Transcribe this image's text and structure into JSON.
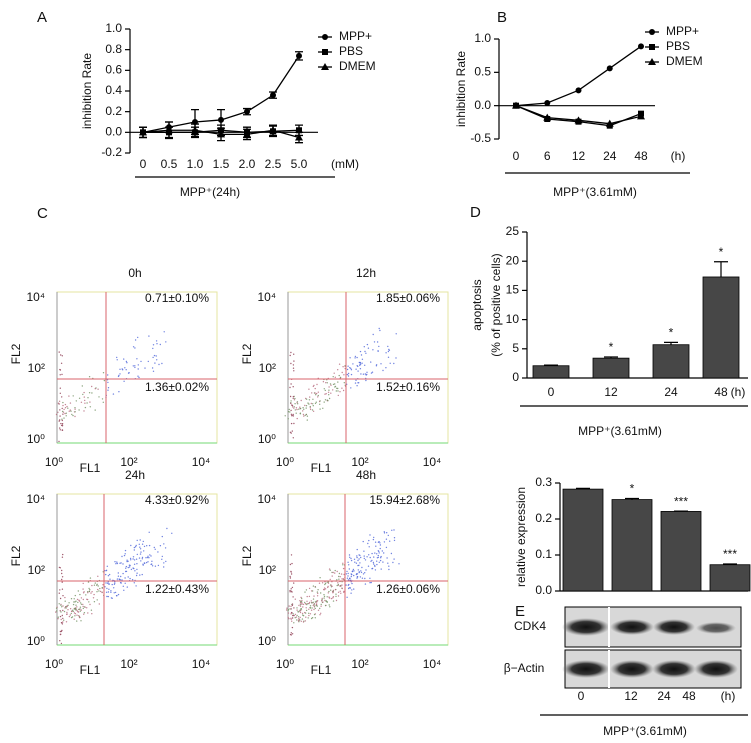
{
  "chart_data": [
    {
      "panel": "A",
      "type": "line",
      "y_label": "inhibition Rate",
      "x_label": "MPP⁺(24h)",
      "x_unit": "(mM)",
      "categories": [
        "0",
        "0.5",
        "1.0",
        "1.5",
        "2.0",
        "2.5",
        "5.0"
      ],
      "ylim": [
        -0.2,
        1.0
      ],
      "yticks": [
        -0.2,
        {
          "value": 0,
          "label": "0.0"
        },
        0.2,
        0.4,
        0.6,
        0.8,
        {
          "value": 1,
          "label": "1.0"
        }
      ],
      "series": [
        {
          "name": "MPP+",
          "color": "#000000",
          "marker": "circle",
          "values": [
            0,
            0.05,
            0.1,
            0.12,
            0.2,
            0.36,
            0.74
          ],
          "errors": [
            0.05,
            0.05,
            0.12,
            0.1,
            0.03,
            0.03,
            0.04
          ]
        },
        {
          "name": "PBS",
          "color": "#000000",
          "marker": "square",
          "values": [
            0,
            0,
            0,
            0.02,
            0,
            0.01,
            0.02
          ],
          "errors": [
            0.05,
            0.05,
            0.05,
            0.05,
            0.05,
            0.05,
            0.05
          ]
        },
        {
          "name": "DMEM",
          "color": "#000000",
          "marker": "triangle",
          "values": [
            0,
            0.02,
            0.02,
            -0.02,
            -0.02,
            0.02,
            -0.05
          ],
          "errors": [
            0.05,
            0.08,
            0.06,
            0.06,
            0.05,
            0.05,
            0.05
          ]
        }
      ]
    },
    {
      "panel": "B",
      "type": "line",
      "y_label": "inhibition Rate",
      "x_label": "MPP⁺(3.61mM)",
      "x_unit": "(h)",
      "categories": [
        "0",
        "6",
        "12",
        "24",
        "48"
      ],
      "ylim": [
        -0.5,
        1.0
      ],
      "yticks": [
        -0.5,
        {
          "value": 0,
          "label": "0.0"
        },
        0.5,
        {
          "value": 1,
          "label": "1.0"
        }
      ],
      "series": [
        {
          "name": "MPP+",
          "color": "#000000",
          "marker": "circle",
          "values": [
            0,
            0.04,
            0.23,
            0.56,
            0.89
          ]
        },
        {
          "name": "PBS",
          "color": "#000000",
          "marker": "square",
          "values": [
            0,
            -0.2,
            -0.24,
            -0.3,
            -0.12
          ]
        },
        {
          "name": "DMEM",
          "color": "#000000",
          "marker": "triangle",
          "values": [
            0,
            -0.18,
            -0.22,
            -0.27,
            -0.16
          ]
        }
      ]
    },
    {
      "panel": "D",
      "type": "bar",
      "y_label": [
        "apoptosis",
        "(% of  positive cells)"
      ],
      "x_label": "MPP⁺(3.61mM)",
      "x_unit": "(h)",
      "categories": [
        "0",
        "12",
        "24",
        "48"
      ],
      "values": [
        2.1,
        3.4,
        5.7,
        17.3
      ],
      "errors": [
        0.1,
        0.2,
        0.4,
        2.6
      ],
      "significance": [
        null,
        "*",
        "*",
        "*"
      ],
      "color": "#474747",
      "ylim": [
        0,
        25
      ],
      "yticks": [
        0,
        5,
        10,
        15,
        20,
        25
      ]
    },
    {
      "panel": "E",
      "type": "bar",
      "y_label": "relative expression",
      "x_label": "MPP⁺(3.61mM)",
      "x_unit": "(h)",
      "categories": [
        "0",
        "12",
        "24",
        "48"
      ],
      "values": [
        0.283,
        0.254,
        0.221,
        0.073
      ],
      "errors": [
        0.002,
        0.003,
        0.001,
        0.002
      ],
      "significance": [
        null,
        "*",
        "***",
        "***"
      ],
      "color": "#474747",
      "ylim": [
        0,
        0.3
      ],
      "yticks": [
        {
          "value": 0,
          "label": "0.0"
        },
        0.1,
        0.2,
        0.3
      ],
      "blots": [
        "CDK4",
        "β−Actin"
      ]
    }
  ],
  "flow_cytometry": {
    "panel": "C",
    "x_label": "FL1",
    "y_label": "FL2",
    "ticks": [
      "10⁰",
      "10²",
      "10⁴"
    ],
    "plots": [
      {
        "time": "0h",
        "upper": "0.71±0.10%",
        "lower": "1.36±0.02%"
      },
      {
        "time": "12h",
        "upper": "1.85±0.06%",
        "lower": "1.52±0.16%"
      },
      {
        "time": "24h",
        "upper": "4.33±0.92%",
        "lower": "1.22±0.43%"
      },
      {
        "time": "48h",
        "upper": "15.94±2.68%",
        "lower": "1.26±0.06%"
      }
    ]
  }
}
